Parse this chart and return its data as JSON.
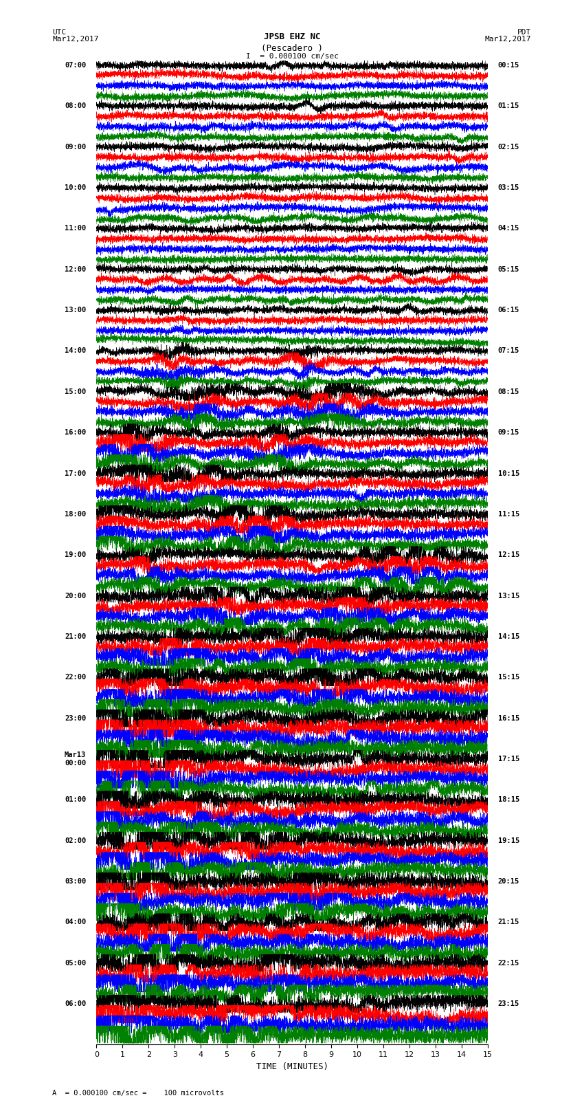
{
  "title_line1": "JPSB EHZ NC",
  "title_line2": "(Pescadero )",
  "scale_text": "= 0.000100 cm/sec",
  "scale_bar_text": "I",
  "utc_label": "UTC",
  "utc_date": "Mar12,2017",
  "pdt_label": "PDT",
  "pdt_date": "Mar12,2017",
  "bottom_label": "A  = 0.000100 cm/sec =    100 microvolts",
  "xlabel": "TIME (MINUTES)",
  "xlim": [
    0,
    15
  ],
  "xticks": [
    0,
    1,
    2,
    3,
    4,
    5,
    6,
    7,
    8,
    9,
    10,
    11,
    12,
    13,
    14,
    15
  ],
  "left_labels": [
    "07:00",
    "08:00",
    "09:00",
    "10:00",
    "11:00",
    "12:00",
    "13:00",
    "14:00",
    "15:00",
    "16:00",
    "17:00",
    "18:00",
    "19:00",
    "20:00",
    "21:00",
    "22:00",
    "23:00",
    "Mar13\n00:00",
    "01:00",
    "02:00",
    "03:00",
    "04:00",
    "05:00",
    "06:00"
  ],
  "right_labels": [
    "00:15",
    "01:15",
    "02:15",
    "03:15",
    "04:15",
    "05:15",
    "06:15",
    "07:15",
    "08:15",
    "09:15",
    "10:15",
    "11:15",
    "12:15",
    "13:15",
    "14:15",
    "15:15",
    "16:15",
    "17:15",
    "18:15",
    "19:15",
    "20:15",
    "21:15",
    "22:15",
    "23:15"
  ],
  "colors": [
    "black",
    "red",
    "blue",
    "green"
  ],
  "n_groups": 24,
  "bg_color": "white",
  "n_samples": 4500
}
